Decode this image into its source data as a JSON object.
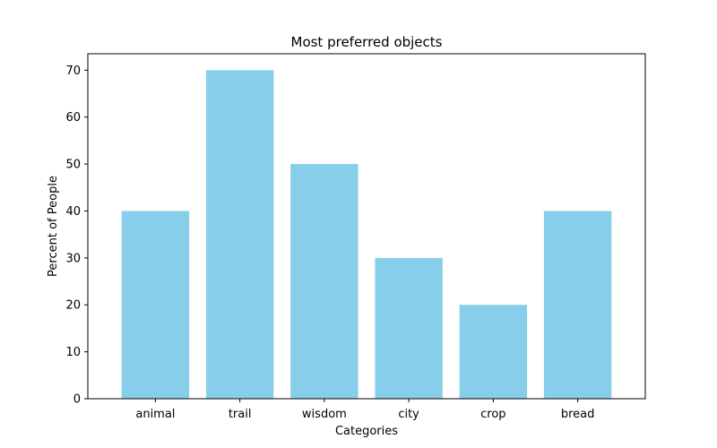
{
  "chart_data": {
    "type": "bar",
    "title": "Most preferred objects",
    "xlabel": "Categories",
    "ylabel": "Percent of People",
    "categories": [
      "animal",
      "trail",
      "wisdom",
      "city",
      "crop",
      "bread"
    ],
    "values": [
      40,
      70,
      50,
      30,
      20,
      40
    ],
    "ylim": [
      0,
      73.5
    ],
    "yticks": [
      0,
      10,
      20,
      30,
      40,
      50,
      60,
      70
    ],
    "bar_color": "#87ceeb",
    "grid": false,
    "legend": false
  }
}
